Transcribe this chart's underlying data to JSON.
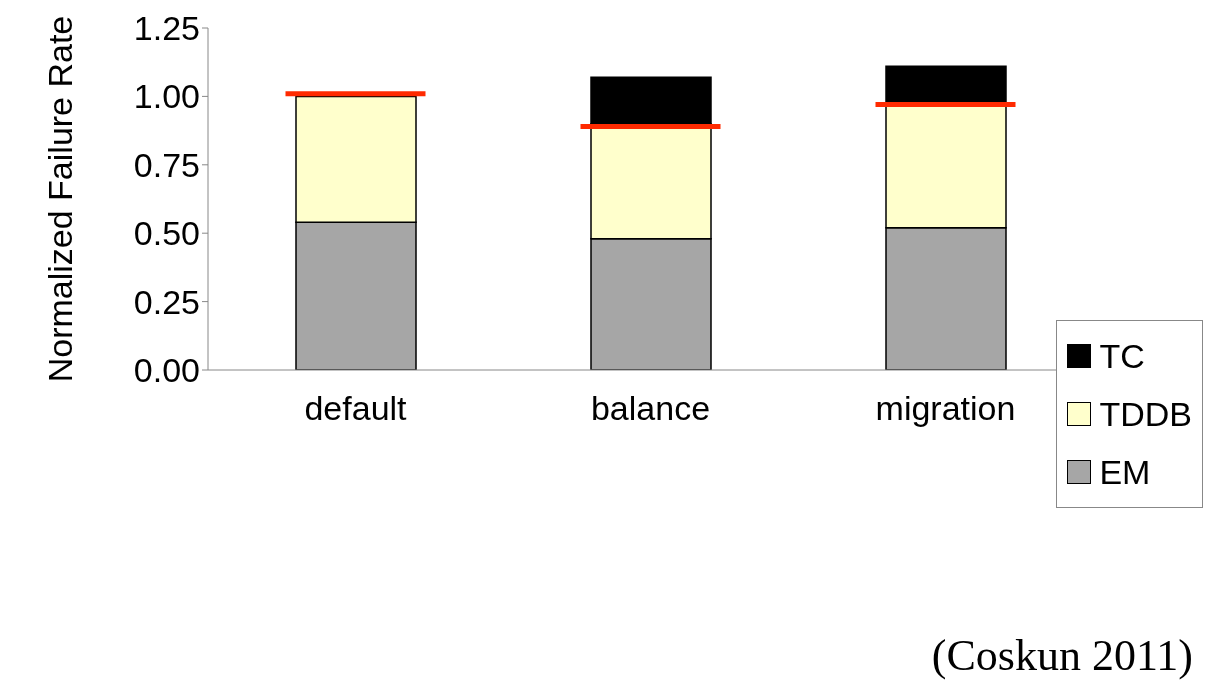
{
  "chart_data": {
    "type": "bar",
    "stacked": true,
    "ylabel": "Normalized Failure Rate",
    "categories": [
      "default",
      "balance",
      "migration"
    ],
    "series": [
      {
        "name": "EM",
        "color": "#a6a6a6",
        "values": [
          0.54,
          0.48,
          0.52
        ]
      },
      {
        "name": "TDDB",
        "color": "#ffffcc",
        "values": [
          0.46,
          0.42,
          0.45
        ]
      },
      {
        "name": "TC",
        "color": "#000000",
        "values": [
          0,
          0.17,
          0.14
        ]
      },
      {
        "type": "box",
        "color": "#ff2a00",
        "boxes": [
          {
            "low": 1.01,
            "q1": 1.01,
            "median": 1.01,
            "q3": 1.01,
            "high": 1.01
          },
          {
            "low": 0.89,
            "q1": 0.89,
            "median": 0.89,
            "q3": 0.89,
            "high": 0.89
          },
          {
            "low": 0.97,
            "q1": 0.97,
            "median": 0.97,
            "q3": 0.97,
            "high": 0.97
          }
        ]
      }
    ],
    "ylim": [
      0,
      1.25
    ],
    "yticks": [
      {
        "value": 0,
        "label": "0.00"
      },
      {
        "value": 0.25,
        "label": "0.25"
      },
      {
        "value": 0.5,
        "label": "0.50"
      },
      {
        "value": 0.75,
        "label": "0.75"
      },
      {
        "value": 1,
        "label": "1.00"
      },
      {
        "value": 1.25,
        "label": "1.25"
      }
    ],
    "grid": false,
    "legend": "bottom right",
    "annotations": [
      "(Coskun 2011)"
    ]
  }
}
